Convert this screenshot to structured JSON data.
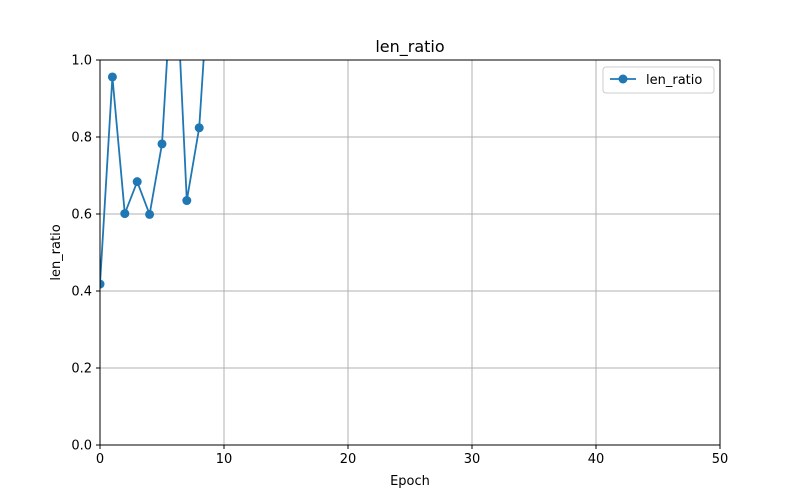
{
  "chart_data": {
    "type": "line",
    "title": "len_ratio",
    "xlabel": "Epoch",
    "ylabel": "len_ratio",
    "xlim": [
      0,
      50
    ],
    "ylim": [
      0.0,
      1.0
    ],
    "x_ticks": [
      0,
      10,
      20,
      30,
      40,
      50
    ],
    "y_ticks": [
      0.0,
      0.2,
      0.4,
      0.6,
      0.8,
      1.0
    ],
    "x_tick_labels": [
      "0",
      "10",
      "20",
      "30",
      "40",
      "50"
    ],
    "y_tick_labels": [
      "0.0",
      "0.2",
      "0.4",
      "0.6",
      "0.8",
      "1.0"
    ],
    "grid": true,
    "legend_position": "top-right",
    "series": [
      {
        "name": "len_ratio",
        "color": "#1f77b4",
        "marker": "circle",
        "x": [
          0,
          1,
          2,
          3,
          4,
          5,
          6,
          7,
          8,
          9
        ],
        "y": [
          0.418,
          0.956,
          0.601,
          0.684,
          0.599,
          0.782,
          1.32,
          0.635,
          0.824,
          1.32
        ]
      }
    ]
  }
}
